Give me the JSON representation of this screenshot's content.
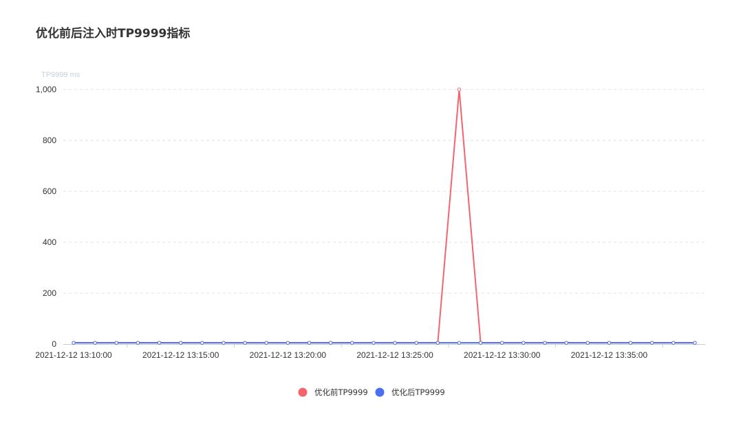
{
  "page": {
    "title": "优化前后注入时TP9999指标"
  },
  "chart_data": {
    "type": "line",
    "title": "优化前后注入时TP9999指标",
    "ylabel": "TP9999 ms",
    "xlabel": "",
    "ylim": [
      0,
      1000
    ],
    "y_ticks": [
      0,
      200,
      400,
      600,
      800,
      1000
    ],
    "y_tick_labels": [
      "0",
      "200",
      "400",
      "600",
      "800",
      "1,000"
    ],
    "x_tick_labels": [
      "2021-12-12 13:10:00",
      "2021-12-12 13:15:00",
      "2021-12-12 13:20:00",
      "2021-12-12 13:25:00",
      "2021-12-12 13:30:00",
      "2021-12-12 13:35:00"
    ],
    "x": [
      "2021-12-12 13:10:00",
      "2021-12-12 13:11:00",
      "2021-12-12 13:12:00",
      "2021-12-12 13:13:00",
      "2021-12-12 13:14:00",
      "2021-12-12 13:15:00",
      "2021-12-12 13:16:00",
      "2021-12-12 13:17:00",
      "2021-12-12 13:18:00",
      "2021-12-12 13:19:00",
      "2021-12-12 13:20:00",
      "2021-12-12 13:21:00",
      "2021-12-12 13:22:00",
      "2021-12-12 13:23:00",
      "2021-12-12 13:24:00",
      "2021-12-12 13:25:00",
      "2021-12-12 13:26:00",
      "2021-12-12 13:27:00",
      "2021-12-12 13:28:00",
      "2021-12-12 13:29:00",
      "2021-12-12 13:30:00",
      "2021-12-12 13:31:00",
      "2021-12-12 13:32:00",
      "2021-12-12 13:33:00",
      "2021-12-12 13:34:00",
      "2021-12-12 13:35:00",
      "2021-12-12 13:36:00",
      "2021-12-12 13:37:00",
      "2021-12-12 13:38:00",
      "2021-12-12 13:39:00"
    ],
    "series": [
      {
        "name": "优化前TP9999",
        "color": "#f4646e",
        "values": [
          5,
          5,
          5,
          5,
          5,
          5,
          5,
          5,
          5,
          5,
          5,
          5,
          5,
          5,
          5,
          5,
          5,
          5,
          1000,
          5,
          5,
          5,
          5,
          5,
          5,
          5,
          5,
          5,
          5,
          5
        ]
      },
      {
        "name": "优化后TP9999",
        "color": "#4c6ef0",
        "values": [
          5,
          5,
          5,
          5,
          5,
          5,
          5,
          5,
          5,
          5,
          5,
          5,
          5,
          5,
          5,
          5,
          5,
          5,
          5,
          5,
          5,
          5,
          5,
          5,
          5,
          5,
          5,
          5,
          5,
          5
        ]
      }
    ],
    "grid": true,
    "legend_position": "bottom-center"
  }
}
